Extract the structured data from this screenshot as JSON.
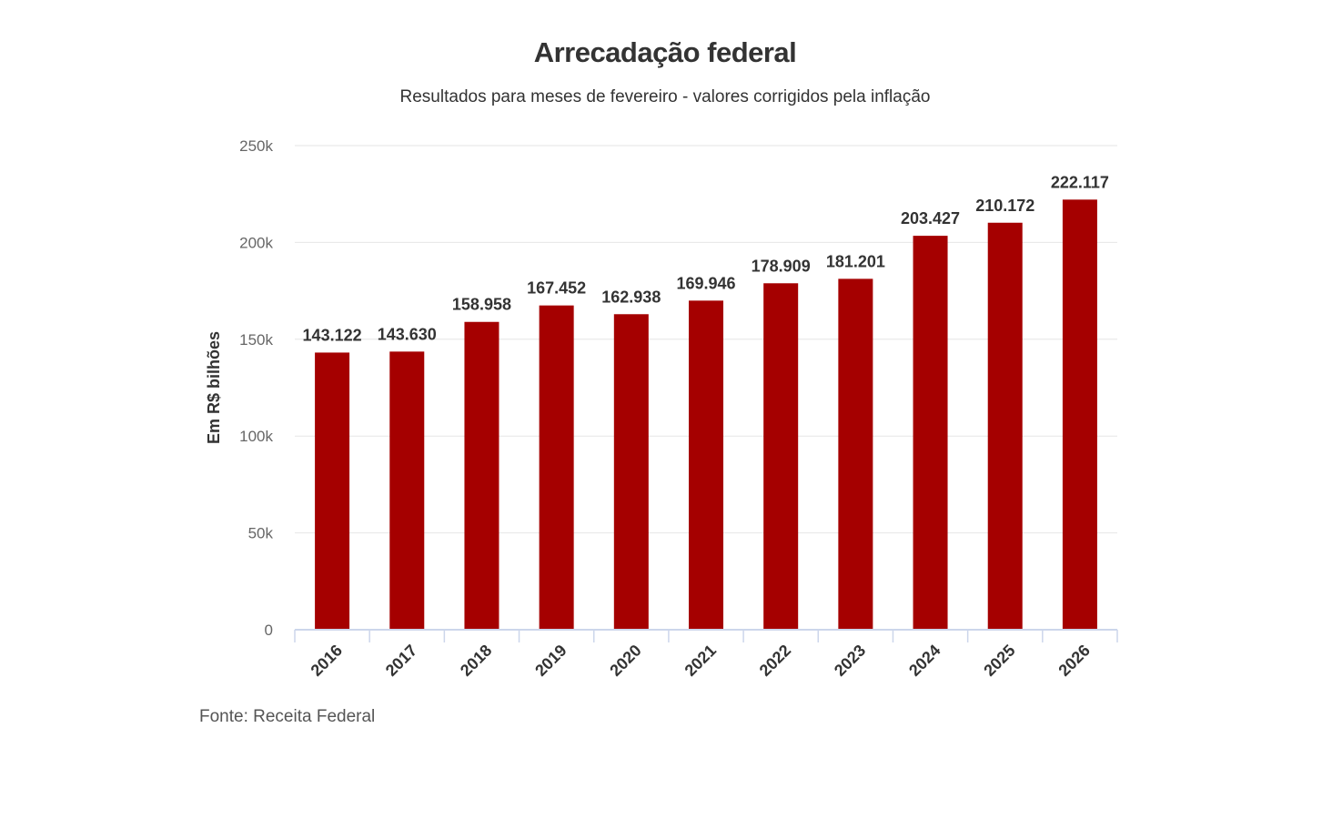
{
  "chart_data": {
    "type": "bar",
    "title": "Arrecadação federal",
    "subtitle": "Resultados para meses de fevereiro - valores corrigidos pela inflação",
    "xlabel": "",
    "ylabel": "Em R$ bilhões",
    "categories": [
      "2016",
      "2017",
      "2018",
      "2019",
      "2020",
      "2021",
      "2022",
      "2023",
      "2024",
      "2025",
      "2026"
    ],
    "values": [
      143122,
      143630,
      158958,
      167452,
      162938,
      169946,
      178909,
      181201,
      203427,
      210172,
      222117
    ],
    "data_labels": [
      "143.122",
      "143.630",
      "158.958",
      "167.452",
      "162.938",
      "169.946",
      "178.909",
      "181.201",
      "203.427",
      "210.172",
      "222.117"
    ],
    "ylim": [
      0,
      250000
    ],
    "yticks": [
      0,
      50000,
      100000,
      150000,
      200000,
      250000
    ],
    "ytick_labels": [
      "0",
      "50k",
      "100k",
      "150k",
      "200k",
      "250k"
    ],
    "grid": true,
    "legend": "none",
    "bar_color": "#a50000",
    "source": "Fonte: Receita Federal"
  }
}
